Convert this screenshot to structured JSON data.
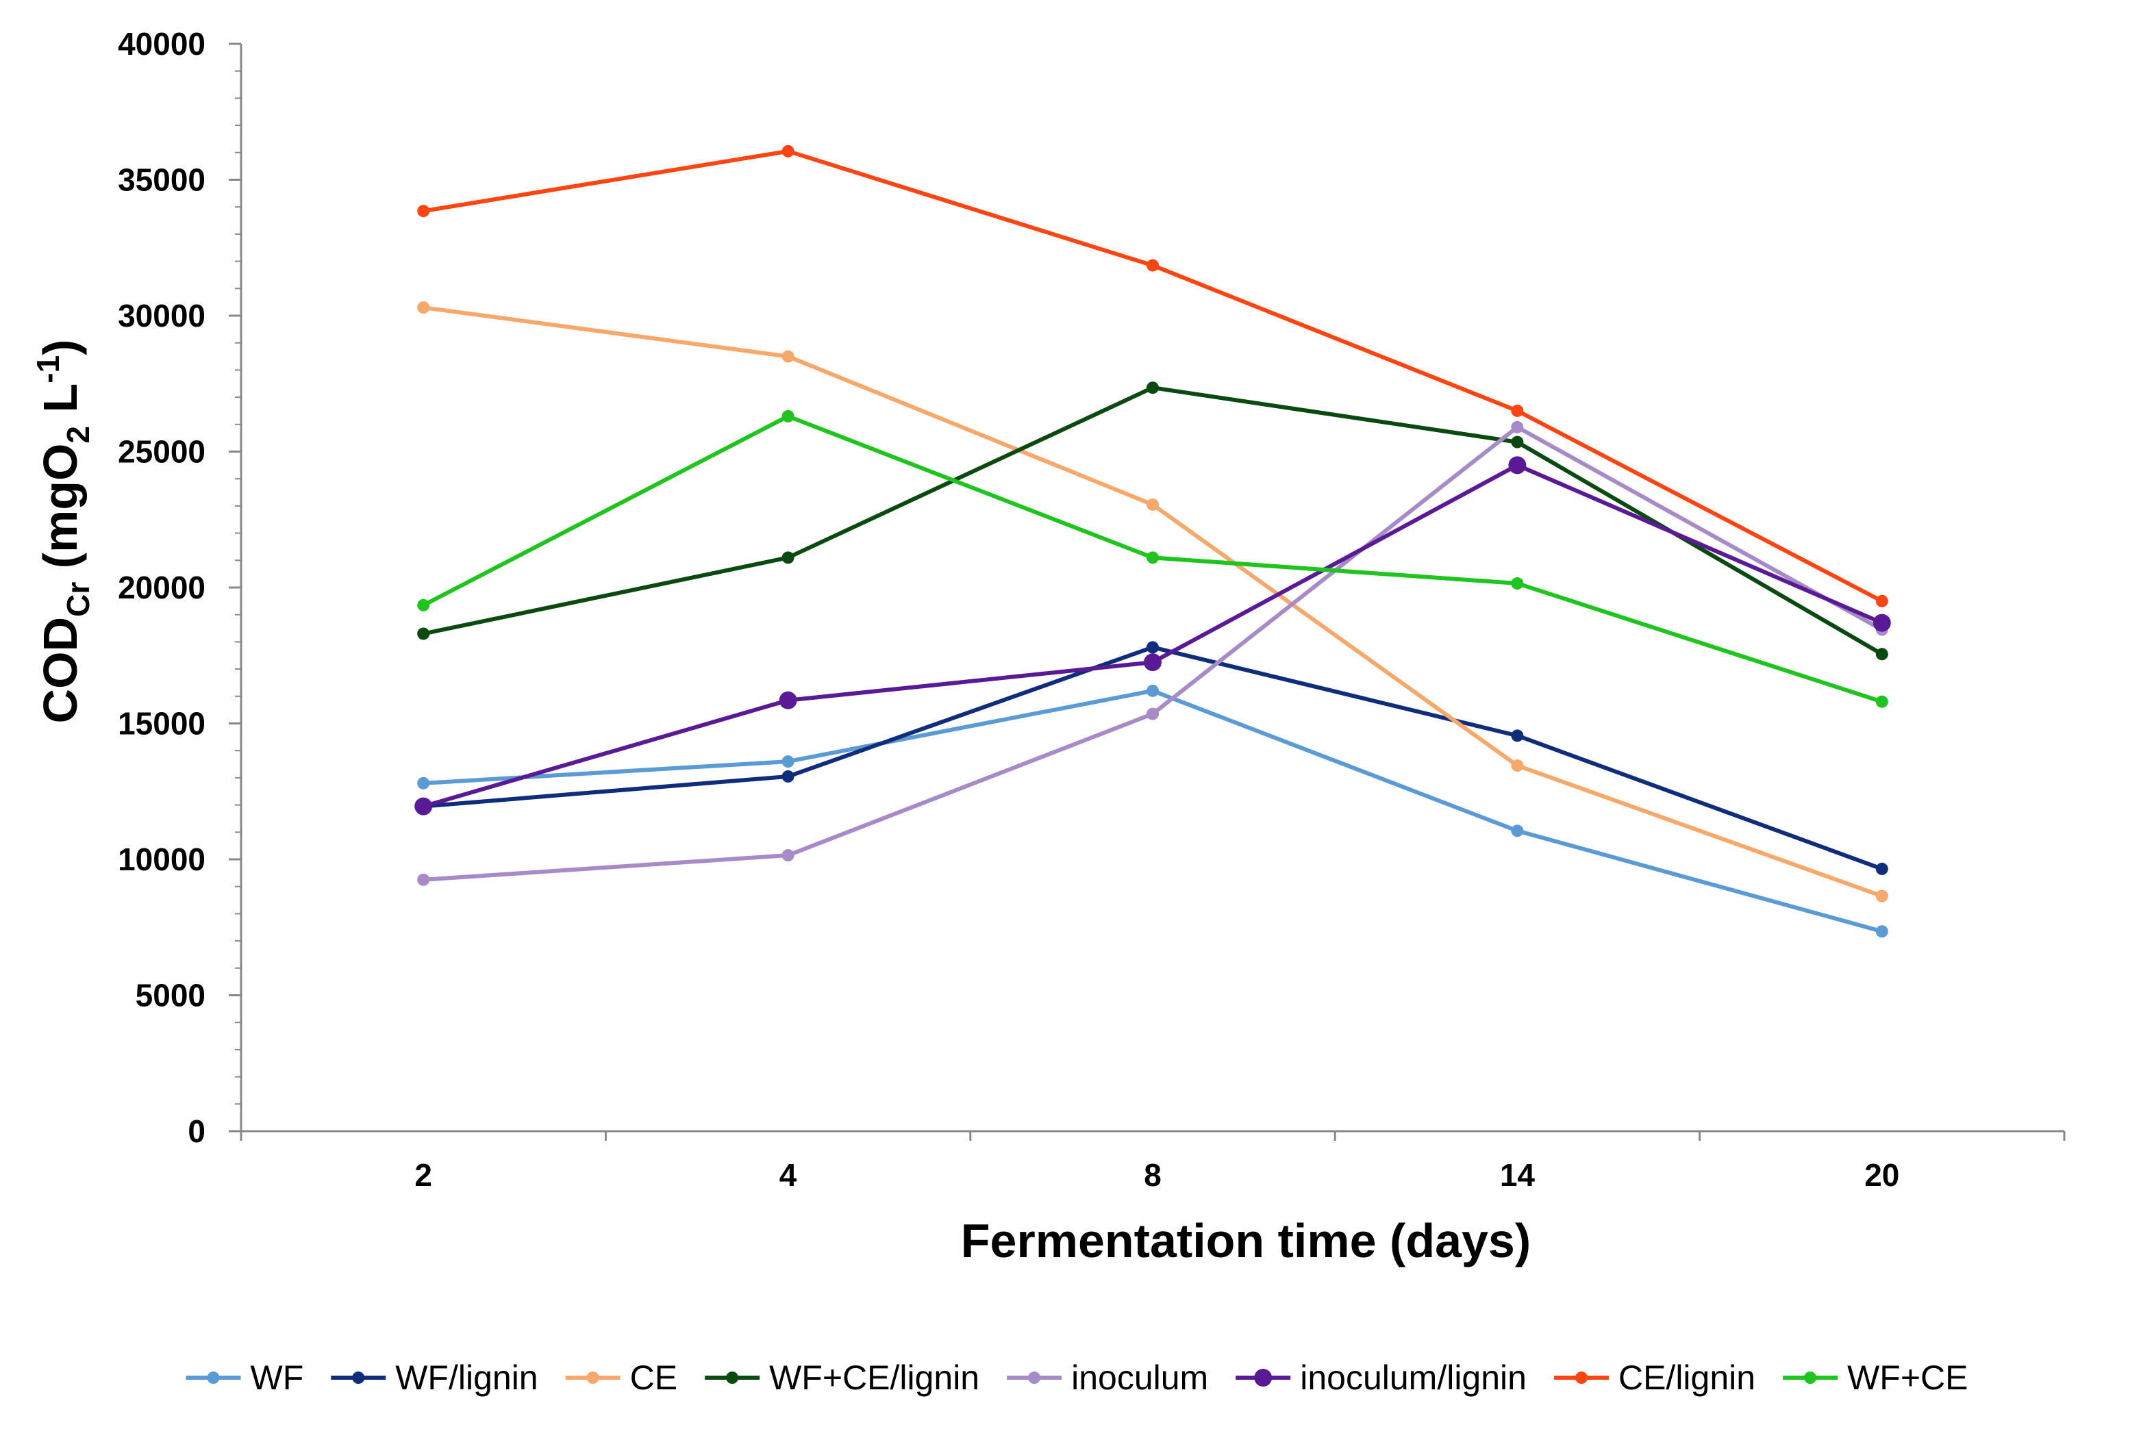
{
  "chart_data": {
    "type": "line",
    "title": "",
    "xlabel": "Fermentation time (days)",
    "ylabel": {
      "main": "COD",
      "sub": "Cr",
      "unit_prefix": " (mgO",
      "unit_sub": "2",
      "unit_mid": " L",
      "unit_sup": "-1",
      "unit_suffix": ")"
    },
    "categories": [
      "2",
      "4",
      "8",
      "14",
      "20"
    ],
    "ylim": [
      0,
      40000
    ],
    "yticks": [
      "0",
      "5000",
      "10000",
      "15000",
      "20000",
      "25000",
      "30000",
      "35000",
      "40000"
    ],
    "legend_position": "bottom",
    "series": [
      {
        "name": "WF",
        "color": "#5b9bd5",
        "marker": "small",
        "values": [
          12800,
          13600,
          16200,
          11050,
          7350
        ]
      },
      {
        "name": "WF/lignin",
        "color": "#0f2d7a",
        "marker": "small",
        "values": [
          11950,
          13050,
          17800,
          14550,
          9650
        ]
      },
      {
        "name": "CE",
        "color": "#f7a86a",
        "marker": "small",
        "values": [
          30300,
          28500,
          23050,
          13450,
          8650
        ]
      },
      {
        "name": "WF+CE/lignin",
        "color": "#0a4a10",
        "marker": "small",
        "values": [
          18300,
          21100,
          27350,
          25350,
          17550
        ]
      },
      {
        "name": "inoculum",
        "color": "#a78bc8",
        "marker": "small",
        "values": [
          9250,
          10150,
          15350,
          25900,
          18450
        ]
      },
      {
        "name": "inoculum/lignin",
        "color": "#5a1a96",
        "marker": "large",
        "values": [
          11950,
          15850,
          17250,
          24500,
          18700
        ]
      },
      {
        "name": "CE/lignin",
        "color": "#ff4511",
        "marker": "small",
        "values": [
          33850,
          36050,
          31850,
          26500,
          19500
        ]
      },
      {
        "name": "WF+CE",
        "color": "#1fc41f",
        "marker": "small",
        "values": [
          19350,
          26300,
          21100,
          20150,
          15800
        ]
      }
    ]
  }
}
